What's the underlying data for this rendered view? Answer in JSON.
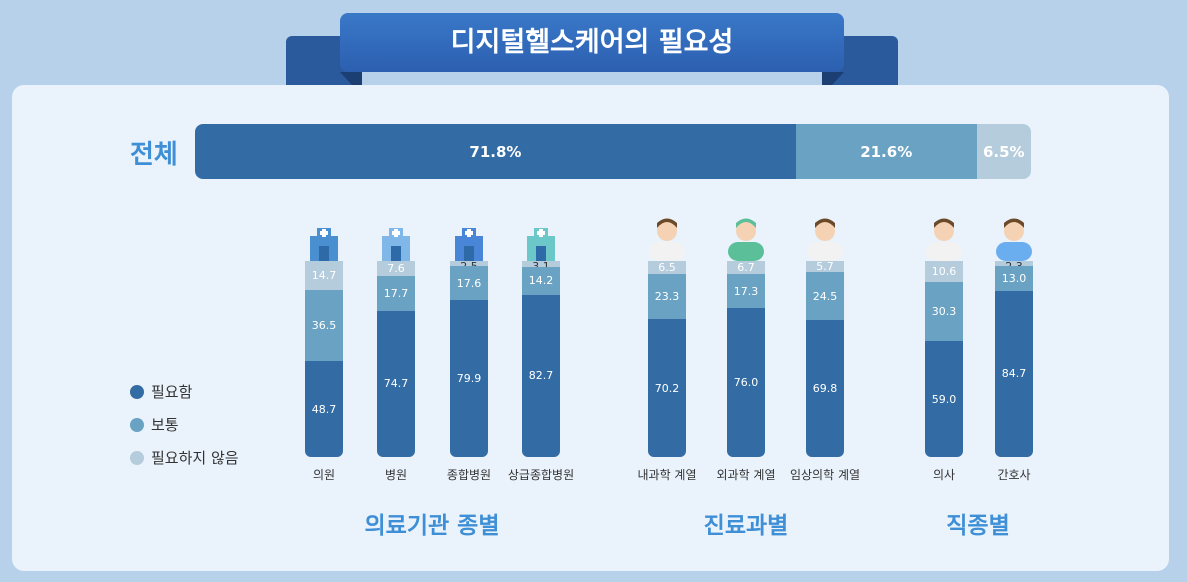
{
  "title": "디지털헬스케어의 필요성",
  "colors": {
    "necessary": "#336ca4",
    "neutral": "#6aa2c4",
    "unnecessary": "#b5ccdc",
    "accent": "#3f8fd6"
  },
  "total": {
    "label": "전체",
    "values": [
      71.8,
      21.6,
      6.5
    ],
    "labels": [
      "71.8%",
      "21.6%",
      "6.5%"
    ]
  },
  "legend": [
    "필요함",
    "보통",
    "필요하지 않음"
  ],
  "chart_data": {
    "type": "bar",
    "stacked": true,
    "series_names": [
      "필요함",
      "보통",
      "필요하지 않음"
    ],
    "groups": [
      {
        "name": "의료기관 종별",
        "categories": [
          {
            "label": "의원",
            "icon": "clinic-icon",
            "values": [
              48.7,
              36.5,
              14.7
            ]
          },
          {
            "label": "병원",
            "icon": "hospital-icon",
            "values": [
              74.7,
              17.7,
              7.6
            ]
          },
          {
            "label": "종합병원",
            "icon": "general-hospital-icon",
            "values": [
              79.9,
              17.6,
              2.5
            ]
          },
          {
            "label": "상급종합병원",
            "icon": "tertiary-hospital-icon",
            "values": [
              82.7,
              14.2,
              3.1
            ]
          }
        ]
      },
      {
        "name": "진료과별",
        "categories": [
          {
            "label": "내과학 계열",
            "icon": "internist-icon",
            "values": [
              70.2,
              23.3,
              6.5
            ]
          },
          {
            "label": "외과학 계열",
            "icon": "surgeon-icon",
            "values": [
              76.0,
              17.3,
              6.7
            ]
          },
          {
            "label": "임상의학 계열",
            "icon": "clinical-doctor-icon",
            "values": [
              69.8,
              24.5,
              5.7
            ]
          }
        ]
      },
      {
        "name": "직종별",
        "categories": [
          {
            "label": "의사",
            "icon": "doctor-icon",
            "values": [
              59.0,
              30.3,
              10.6
            ]
          },
          {
            "label": "간호사",
            "icon": "nurse-icon",
            "values": [
              84.7,
              13.0,
              2.3
            ]
          }
        ]
      }
    ]
  }
}
